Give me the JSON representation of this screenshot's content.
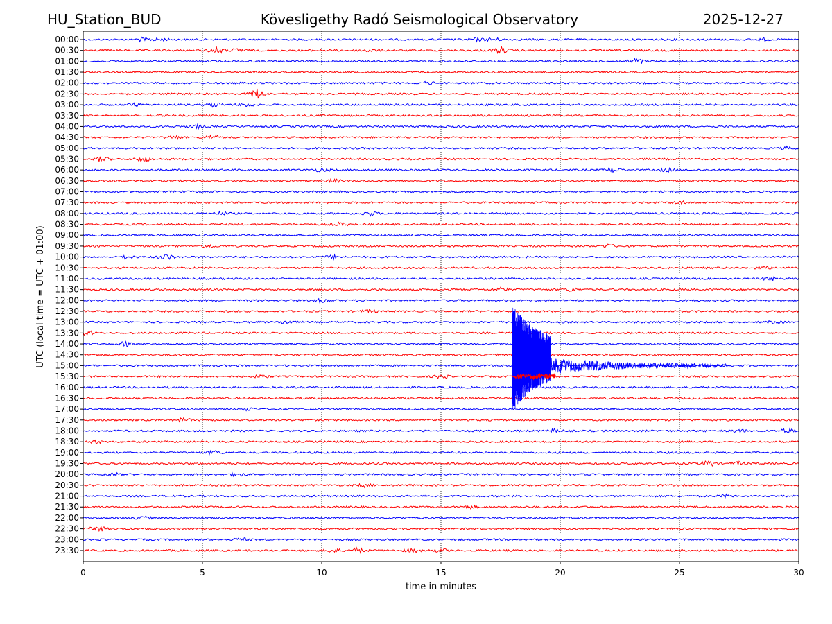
{
  "header": {
    "station": "HU_Station_BUD",
    "observatory": "Kövesligethy Radó Seismological Observatory",
    "date": "2025-12-27"
  },
  "chart_data": {
    "type": "line",
    "title": "Kövesligethy Radó Seismological Observatory",
    "xlabel": "time in minutes",
    "ylabel": "UTC (local time = UTC + 01:00)",
    "xlim": [
      0,
      30
    ],
    "x_ticks": [
      "0",
      "5",
      "10",
      "15",
      "20",
      "25",
      "30"
    ],
    "grid": "vertical dotted at 5-minute ticks",
    "colors": [
      "#0000ff",
      "#ff0000"
    ],
    "row_labels": [
      "00:00",
      "00:30",
      "01:00",
      "01:30",
      "02:00",
      "02:30",
      "03:00",
      "03:30",
      "04:00",
      "04:30",
      "05:00",
      "05:30",
      "06:00",
      "06:30",
      "07:00",
      "07:30",
      "08:00",
      "08:30",
      "09:00",
      "09:30",
      "10:00",
      "10:30",
      "11:00",
      "11:30",
      "12:00",
      "12:30",
      "13:00",
      "13:30",
      "14:00",
      "14:30",
      "15:00",
      "15:30",
      "16:00",
      "16:30",
      "17:00",
      "17:30",
      "18:00",
      "18:30",
      "19:00",
      "19:30",
      "20:00",
      "20:30",
      "21:00",
      "21:30",
      "22:00",
      "22:30",
      "23:00",
      "23:30"
    ],
    "traces": [
      {
        "row": "00:00",
        "bursts": [
          {
            "t": 2.5,
            "amp": 1.8
          },
          {
            "t": 3.2,
            "amp": 1.5
          },
          {
            "t": 16.5,
            "amp": 1.4
          },
          {
            "t": 17.2,
            "amp": 1.5
          },
          {
            "t": 28.5,
            "amp": 1.2
          }
        ]
      },
      {
        "row": "00:30",
        "bursts": [
          {
            "t": 5.6,
            "amp": 3.2
          },
          {
            "t": 6.5,
            "amp": 1.6
          },
          {
            "t": 17.5,
            "amp": 3.0
          },
          {
            "t": 12.0,
            "amp": 1.2
          }
        ]
      },
      {
        "row": "01:00",
        "bursts": [
          {
            "t": 23.2,
            "amp": 2.5
          }
        ]
      },
      {
        "row": "01:30",
        "bursts": []
      },
      {
        "row": "02:00",
        "bursts": [
          {
            "t": 14.5,
            "amp": 1.2
          }
        ]
      },
      {
        "row": "02:30",
        "bursts": [
          {
            "t": 7.3,
            "amp": 5.0
          }
        ]
      },
      {
        "row": "03:00",
        "bursts": [
          {
            "t": 2.2,
            "amp": 1.6
          },
          {
            "t": 5.5,
            "amp": 2.0
          },
          {
            "t": 6.8,
            "amp": 1.8
          }
        ]
      },
      {
        "row": "03:30",
        "bursts": []
      },
      {
        "row": "04:00",
        "bursts": [
          {
            "t": 4.8,
            "amp": 1.4
          }
        ]
      },
      {
        "row": "04:30",
        "bursts": [
          {
            "t": 3.8,
            "amp": 1.5
          },
          {
            "t": 5.4,
            "amp": 1.8
          }
        ]
      },
      {
        "row": "05:00",
        "bursts": [
          {
            "t": 29.5,
            "amp": 1.2
          }
        ]
      },
      {
        "row": "05:30",
        "bursts": [
          {
            "t": 0.8,
            "amp": 2.0
          },
          {
            "t": 2.5,
            "amp": 2.4
          }
        ]
      },
      {
        "row": "06:00",
        "bursts": [
          {
            "t": 10.0,
            "amp": 1.5
          },
          {
            "t": 22.2,
            "amp": 2.2
          },
          {
            "t": 24.5,
            "amp": 1.5
          }
        ]
      },
      {
        "row": "06:30",
        "bursts": [
          {
            "t": 10.5,
            "amp": 1.2
          }
        ]
      },
      {
        "row": "07:00",
        "bursts": []
      },
      {
        "row": "07:30",
        "bursts": [
          {
            "t": 25.0,
            "amp": 1.2
          }
        ]
      },
      {
        "row": "08:00",
        "bursts": [
          {
            "t": 5.8,
            "amp": 1.5
          },
          {
            "t": 12.0,
            "amp": 2.0
          }
        ]
      },
      {
        "row": "08:30",
        "bursts": [
          {
            "t": 10.8,
            "amp": 1.4
          }
        ]
      },
      {
        "row": "09:00",
        "bursts": []
      },
      {
        "row": "09:30",
        "bursts": [
          {
            "t": 5.2,
            "amp": 1.6
          },
          {
            "t": 22.0,
            "amp": 1.6
          }
        ]
      },
      {
        "row": "10:00",
        "bursts": [
          {
            "t": 3.5,
            "amp": 2.5
          },
          {
            "t": 10.5,
            "amp": 1.6
          },
          {
            "t": 1.8,
            "amp": 1.6
          }
        ]
      },
      {
        "row": "10:30",
        "bursts": [
          {
            "t": 28.5,
            "amp": 1.4
          }
        ]
      },
      {
        "row": "11:00",
        "bursts": [
          {
            "t": 28.8,
            "amp": 1.8
          }
        ]
      },
      {
        "row": "11:30",
        "bursts": [
          {
            "t": 17.5,
            "amp": 1.8
          },
          {
            "t": 20.5,
            "amp": 1.5
          }
        ]
      },
      {
        "row": "12:00",
        "bursts": [
          {
            "t": 10.0,
            "amp": 1.4
          }
        ]
      },
      {
        "row": "12:30",
        "bursts": [
          {
            "t": 12.0,
            "amp": 1.3
          }
        ]
      },
      {
        "row": "13:00",
        "bursts": [
          {
            "t": 8.5,
            "amp": 1.6
          },
          {
            "t": 29.0,
            "amp": 1.4
          }
        ]
      },
      {
        "row": "13:30",
        "bursts": [
          {
            "t": 0.2,
            "amp": 1.8
          }
        ]
      },
      {
        "row": "14:00",
        "bursts": [
          {
            "t": 1.8,
            "amp": 2.0
          }
        ]
      },
      {
        "row": "14:30",
        "bursts": []
      },
      {
        "row": "15:00",
        "bursts": []
      },
      {
        "row": "15:30",
        "bursts": [
          {
            "t": 15.0,
            "amp": 1.8
          },
          {
            "t": 7.5,
            "amp": 1.3
          }
        ]
      },
      {
        "row": "16:00",
        "bursts": []
      },
      {
        "row": "16:30",
        "bursts": []
      },
      {
        "row": "17:00",
        "bursts": [
          {
            "t": 7.0,
            "amp": 1.4
          }
        ]
      },
      {
        "row": "17:30",
        "bursts": [
          {
            "t": 4.2,
            "amp": 1.5
          }
        ]
      },
      {
        "row": "18:00",
        "bursts": [
          {
            "t": 19.8,
            "amp": 1.4
          },
          {
            "t": 29.5,
            "amp": 2.2
          },
          {
            "t": 27.5,
            "amp": 1.4
          }
        ]
      },
      {
        "row": "18:30",
        "bursts": [
          {
            "t": 0.5,
            "amp": 1.4
          }
        ]
      },
      {
        "row": "19:00",
        "bursts": [
          {
            "t": 5.5,
            "amp": 1.6
          }
        ]
      },
      {
        "row": "19:30",
        "bursts": [
          {
            "t": 26.2,
            "amp": 2.4
          },
          {
            "t": 27.5,
            "amp": 1.4
          }
        ]
      },
      {
        "row": "20:00",
        "bursts": [
          {
            "t": 1.2,
            "amp": 1.8
          },
          {
            "t": 6.5,
            "amp": 1.6
          }
        ]
      },
      {
        "row": "20:30",
        "bursts": [
          {
            "t": 11.8,
            "amp": 1.4
          }
        ]
      },
      {
        "row": "21:00",
        "bursts": [
          {
            "t": 27.0,
            "amp": 1.2
          }
        ]
      },
      {
        "row": "21:30",
        "bursts": [
          {
            "t": 16.2,
            "amp": 1.4
          }
        ]
      },
      {
        "row": "22:00",
        "bursts": [
          {
            "t": 2.5,
            "amp": 1.4
          }
        ]
      },
      {
        "row": "22:30",
        "bursts": [
          {
            "t": 0.6,
            "amp": 2.6
          }
        ]
      },
      {
        "row": "23:00",
        "bursts": [
          {
            "t": 6.6,
            "amp": 1.6
          }
        ]
      },
      {
        "row": "23:30",
        "bursts": [
          {
            "t": 10.5,
            "amp": 1.8
          },
          {
            "t": 11.5,
            "amp": 2.2
          },
          {
            "t": 13.8,
            "amp": 1.6
          },
          {
            "t": 15.0,
            "amp": 1.4
          }
        ]
      }
    ],
    "event": {
      "label": "earthquake",
      "onset_minute": 18.0,
      "peak_rows": [
        "12:30",
        "17:00"
      ],
      "coda_end_minute": 27.0,
      "coda_row": "15:00"
    }
  }
}
